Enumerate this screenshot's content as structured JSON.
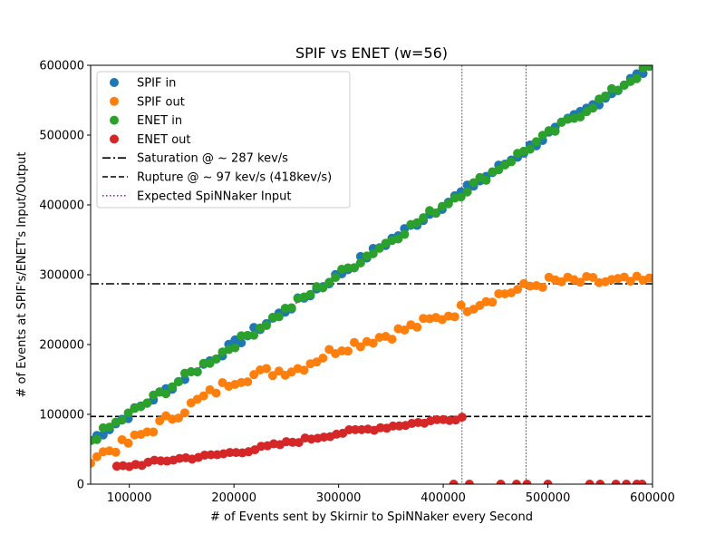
{
  "chart_data": {
    "type": "scatter",
    "title": "SPIF vs ENET (w=56)",
    "xlabel": "# of Events sent by Skirnir to SpiNNaker every Second",
    "ylabel": "# of Events at SPIF's/ENET's Input/Output",
    "xlim": [
      63000,
      600000
    ],
    "ylim": [
      0,
      600000
    ],
    "x_ticks": [
      "100000",
      "200000",
      "300000",
      "400000",
      "500000",
      "600000"
    ],
    "y_ticks": [
      "0",
      "100000",
      "200000",
      "300000",
      "400000",
      "500000",
      "600000"
    ],
    "grid": false,
    "legend_position": "upper-left",
    "sampling": {
      "x_start": 63000,
      "x_end": 600000,
      "x_step": 6000
    },
    "series": [
      {
        "name": "SPIF in",
        "color": "#1f77b4",
        "model": "identity",
        "jitter": 6000
      },
      {
        "name": "SPIF out",
        "color": "#ff7f0e",
        "model": "piecewise",
        "breakpoints": [
          [
            63000,
            38000
          ],
          [
            100000,
            60000
          ],
          [
            200000,
            150000
          ],
          [
            230000,
            160000
          ],
          [
            260000,
            165000
          ],
          [
            300000,
            195000
          ],
          [
            350000,
            215000
          ],
          [
            400000,
            240000
          ],
          [
            450000,
            270000
          ],
          [
            500000,
            290000
          ],
          [
            600000,
            290000
          ]
        ],
        "jitter": 8000
      },
      {
        "name": "ENET in",
        "color": "#2ca02c",
        "model": "identity",
        "jitter": 6000
      },
      {
        "name": "ENET out",
        "color": "#d62728",
        "model": "piecewise",
        "x_range": [
          88000,
          418000
        ],
        "breakpoints": [
          [
            88000,
            24000
          ],
          [
            150000,
            37000
          ],
          [
            175000,
            40000
          ],
          [
            220000,
            50000
          ],
          [
            300000,
            73000
          ],
          [
            350000,
            83000
          ],
          [
            418000,
            96000
          ]
        ],
        "jitter": 3000,
        "extra_points": [
          [
            410000,
            0
          ],
          [
            425000,
            0
          ],
          [
            455000,
            0
          ],
          [
            470000,
            0
          ],
          [
            480000,
            0
          ],
          [
            500000,
            0
          ],
          [
            540000,
            0
          ],
          [
            550000,
            0
          ],
          [
            565000,
            0
          ],
          [
            575000,
            0
          ],
          [
            585000,
            0
          ],
          [
            590000,
            0
          ]
        ]
      }
    ],
    "reference_lines": [
      {
        "name": "Saturation @ ~ 287 kev/s",
        "orientation": "horizontal",
        "value": 287000,
        "style": "dashdot",
        "color": "#000000"
      },
      {
        "name": "Rupture @ ~ 97 kev/s (418kev/s)",
        "orientation": "horizontal",
        "value": 97000,
        "style": "dashed",
        "color": "#000000"
      },
      {
        "name": "Expected SpiNNaker Input",
        "orientation": "diagonal",
        "from": [
          63000,
          63000
        ],
        "to": [
          600000,
          600000
        ],
        "style": "dotted",
        "color": "#cc00cc"
      }
    ],
    "vertical_markers": [
      418000,
      479000
    ]
  }
}
